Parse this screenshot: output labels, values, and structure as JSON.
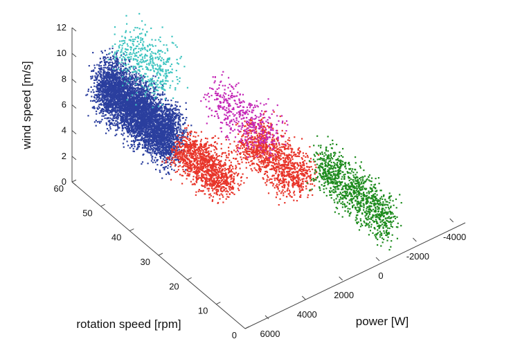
{
  "chart_data": {
    "type": "scatter",
    "projection": "3d",
    "title": "",
    "axes": {
      "x": {
        "label": "power [W]",
        "ticks": [
          "6000",
          "4000",
          "2000",
          "0",
          "-2000",
          "-4000"
        ],
        "tick_values": [
          6000,
          4000,
          2000,
          0,
          -2000,
          -4000
        ],
        "range": [
          -4500,
          7000
        ]
      },
      "y": {
        "label": "rotation speed [rpm]",
        "ticks": [
          "0",
          "10",
          "20",
          "30",
          "40",
          "50",
          "60"
        ],
        "tick_values": [
          0,
          10,
          20,
          30,
          40,
          50,
          60
        ],
        "range": [
          0,
          60
        ]
      },
      "z": {
        "label": "wind speed [m/s]",
        "ticks": [
          "0",
          "2",
          "4",
          "6",
          "8",
          "10",
          "12"
        ],
        "tick_values": [
          0,
          2,
          4,
          6,
          8,
          10,
          12
        ],
        "range": [
          0,
          12
        ]
      }
    },
    "grid": false,
    "series": [
      {
        "color": "#2b3f9e",
        "marker": "square",
        "clusters": [
          {
            "power": [
              4500,
              6800
            ],
            "rpm": [
              35,
              60
            ],
            "wind": [
              3.8,
              10
            ]
          }
        ]
      },
      {
        "color": "#3ec4c0",
        "marker": "square",
        "clusters": [
          {
            "power": [
              3000,
              5800
            ],
            "rpm": [
              45,
              60
            ],
            "wind": [
              6,
              11.5
            ]
          }
        ]
      },
      {
        "color": "#e8352a",
        "marker": "square",
        "clusters": [
          {
            "power": [
              2500,
              5000
            ],
            "rpm": [
              28,
              45
            ],
            "wind": [
              1.5,
              5
            ]
          },
          {
            "power": [
              -500,
              2500
            ],
            "rpm": [
              20,
              40
            ],
            "wind": [
              1,
              5
            ]
          }
        ]
      },
      {
        "color": "#c427b6",
        "marker": "square",
        "clusters": [
          {
            "power": [
              -200,
              2500
            ],
            "rpm": [
              30,
              50
            ],
            "wind": [
              2.5,
              6.5
            ]
          }
        ]
      },
      {
        "color": "#1d8b1d",
        "marker": "square",
        "clusters": [
          {
            "power": [
              -1500,
              300
            ],
            "rpm": [
              0,
              25
            ],
            "wind": [
              0,
              5
            ]
          }
        ]
      }
    ]
  }
}
